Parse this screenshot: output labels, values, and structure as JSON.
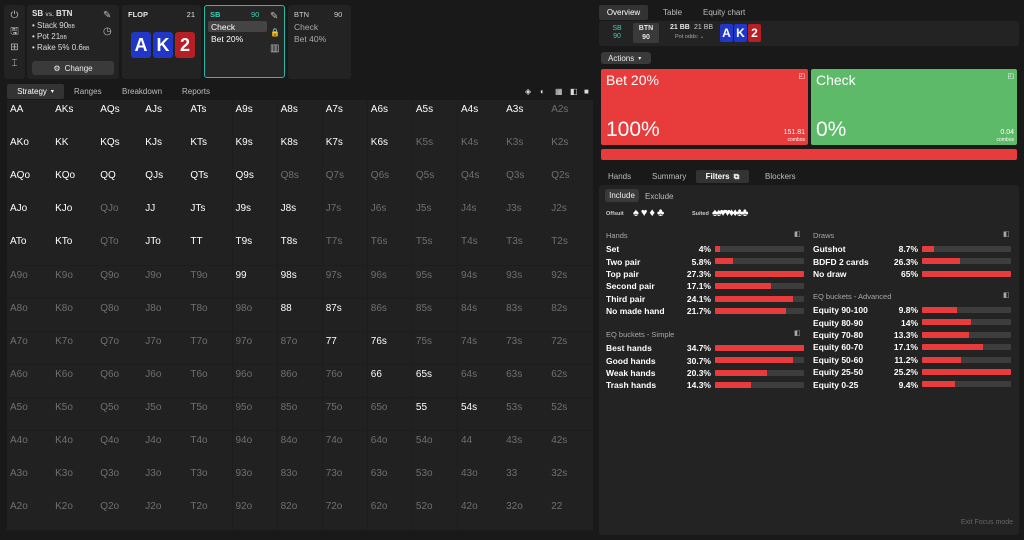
{
  "sidebar_icons": [
    "power-icon",
    "save-icon",
    "gamepad-icon",
    "text-cursor-icon"
  ],
  "config": {
    "title_left": "SB",
    "title_vs": "vs.",
    "title_right": "BTN",
    "stack": "• Stack 90",
    "stack_unit": "BB",
    "pot": "• Pot 21",
    "pot_unit": "BB",
    "rake": "• Rake 5% 0.6",
    "rake_unit": "BB",
    "change": "Change"
  },
  "flop": {
    "label": "FLOP",
    "num": "21",
    "cards": [
      {
        "rank": "A",
        "color": "#2137c7"
      },
      {
        "rank": "K",
        "color": "#2137c7"
      },
      {
        "rank": "2",
        "color": "#b61f24"
      }
    ]
  },
  "sb_box": {
    "label": "SB",
    "num": "90",
    "actions": [
      "Check",
      "Bet 20%"
    ]
  },
  "btn_box": {
    "label": "BTN",
    "num": "90",
    "actions": [
      "Check",
      "Bet 40%"
    ]
  },
  "left_tabs": [
    "Strategy",
    "Ranges",
    "Breakdown",
    "Reports"
  ],
  "grid": [
    [
      [
        "AA",
        1
      ],
      [
        "AKs",
        1
      ],
      [
        "AQs",
        1
      ],
      [
        "AJs",
        1
      ],
      [
        "ATs",
        1
      ],
      [
        "A9s",
        0.28
      ],
      [
        "A8s",
        0.44
      ],
      [
        "A7s",
        0.6
      ],
      [
        "A6s",
        0.36
      ],
      [
        "A5s",
        1
      ],
      [
        "A4s",
        0.6
      ],
      [
        "A3s",
        0.68
      ],
      [
        "A2s",
        0
      ]
    ],
    [
      [
        "AKo",
        1
      ],
      [
        "KK",
        1
      ],
      [
        "KQs",
        1
      ],
      [
        "KJs",
        1
      ],
      [
        "KTs",
        1
      ],
      [
        "K9s",
        0.84
      ],
      [
        "K8s",
        0.28
      ],
      [
        "K7s",
        0.24
      ],
      [
        "K6s",
        0.12
      ],
      [
        "K5s",
        0
      ],
      [
        "K4s",
        0
      ],
      [
        "K3s",
        0
      ],
      [
        "K2s",
        0
      ]
    ],
    [
      [
        "AQo",
        1
      ],
      [
        "KQo",
        1
      ],
      [
        "QQ",
        1
      ],
      [
        "QJs",
        1
      ],
      [
        "QTs",
        1
      ],
      [
        "Q9s",
        0.68
      ],
      [
        "Q8s",
        0
      ],
      [
        "Q7s",
        0
      ],
      [
        "Q6s",
        0
      ],
      [
        "Q5s",
        0
      ],
      [
        "Q4s",
        0
      ],
      [
        "Q3s",
        0
      ],
      [
        "Q2s",
        0
      ]
    ],
    [
      [
        "AJo",
        1
      ],
      [
        "KJo",
        0.48
      ],
      [
        "QJo",
        0
      ],
      [
        "JJ",
        1
      ],
      [
        "JTs",
        1
      ],
      [
        "J9s",
        1
      ],
      [
        "J8s",
        0.2
      ],
      [
        "J7s",
        0
      ],
      [
        "J6s",
        0
      ],
      [
        "J5s",
        0
      ],
      [
        "J4s",
        0
      ],
      [
        "J3s",
        0
      ],
      [
        "J2s",
        0
      ]
    ],
    [
      [
        "ATo",
        0.28
      ],
      [
        "KTo",
        0.12
      ],
      [
        "QTo",
        0
      ],
      [
        "JTo",
        0.08
      ],
      [
        "TT",
        1
      ],
      [
        "T9s",
        1
      ],
      [
        "T8s",
        1
      ],
      [
        "T7s",
        0
      ],
      [
        "T6s",
        0
      ],
      [
        "T5s",
        0
      ],
      [
        "T4s",
        0
      ],
      [
        "T3s",
        0
      ],
      [
        "T2s",
        0
      ]
    ],
    [
      [
        "A9o",
        0
      ],
      [
        "K9o",
        0
      ],
      [
        "Q9o",
        0
      ],
      [
        "J9o",
        0
      ],
      [
        "T9o",
        0
      ],
      [
        "99",
        1
      ],
      [
        "98s",
        1
      ],
      [
        "97s",
        0
      ],
      [
        "96s",
        0
      ],
      [
        "95s",
        0
      ],
      [
        "94s",
        0
      ],
      [
        "93s",
        0
      ],
      [
        "92s",
        0
      ]
    ],
    [
      [
        "A8o",
        0
      ],
      [
        "K8o",
        0
      ],
      [
        "Q8o",
        0
      ],
      [
        "J8o",
        0
      ],
      [
        "T8o",
        0
      ],
      [
        "98o",
        0
      ],
      [
        "88",
        1
      ],
      [
        "87s",
        0.72
      ],
      [
        "86s",
        0
      ],
      [
        "85s",
        0
      ],
      [
        "84s",
        0
      ],
      [
        "83s",
        0
      ],
      [
        "82s",
        0
      ]
    ],
    [
      [
        "A7o",
        0
      ],
      [
        "K7o",
        0
      ],
      [
        "Q7o",
        0
      ],
      [
        "J7o",
        0
      ],
      [
        "T7o",
        0
      ],
      [
        "97o",
        0
      ],
      [
        "87o",
        0
      ],
      [
        "77",
        1
      ],
      [
        "76s",
        0.52
      ],
      [
        "75s",
        0
      ],
      [
        "74s",
        0
      ],
      [
        "73s",
        0
      ],
      [
        "72s",
        0
      ]
    ],
    [
      [
        "A6o",
        0
      ],
      [
        "K6o",
        0
      ],
      [
        "Q6o",
        0
      ],
      [
        "J6o",
        0
      ],
      [
        "T6o",
        0
      ],
      [
        "96o",
        0
      ],
      [
        "86o",
        0
      ],
      [
        "76o",
        0
      ],
      [
        "66",
        1
      ],
      [
        "65s",
        0.14
      ],
      [
        "64s",
        0
      ],
      [
        "63s",
        0
      ],
      [
        "62s",
        0
      ]
    ],
    [
      [
        "A5o",
        0
      ],
      [
        "K5o",
        0
      ],
      [
        "Q5o",
        0
      ],
      [
        "J5o",
        0
      ],
      [
        "T5o",
        0
      ],
      [
        "95o",
        0
      ],
      [
        "85o",
        0
      ],
      [
        "75o",
        0
      ],
      [
        "65o",
        0
      ],
      [
        "55",
        0.2
      ],
      [
        "54s",
        0.18
      ],
      [
        "53s",
        0
      ],
      [
        "52s",
        0
      ]
    ],
    [
      [
        "A4o",
        0
      ],
      [
        "K4o",
        0
      ],
      [
        "Q4o",
        0
      ],
      [
        "J4o",
        0
      ],
      [
        "T4o",
        0
      ],
      [
        "94o",
        0
      ],
      [
        "84o",
        0
      ],
      [
        "74o",
        0
      ],
      [
        "64o",
        0
      ],
      [
        "54o",
        0
      ],
      [
        "44",
        0
      ],
      [
        "43s",
        0
      ],
      [
        "42s",
        0
      ]
    ],
    [
      [
        "A3o",
        0
      ],
      [
        "K3o",
        0
      ],
      [
        "Q3o",
        0
      ],
      [
        "J3o",
        0
      ],
      [
        "T3o",
        0
      ],
      [
        "93o",
        0
      ],
      [
        "83o",
        0
      ],
      [
        "73o",
        0
      ],
      [
        "63o",
        0
      ],
      [
        "53o",
        0
      ],
      [
        "43o",
        0
      ],
      [
        "33",
        0
      ],
      [
        "32s",
        0
      ]
    ],
    [
      [
        "A2o",
        0
      ],
      [
        "K2o",
        0
      ],
      [
        "Q2o",
        0
      ],
      [
        "J2o",
        0
      ],
      [
        "T2o",
        0
      ],
      [
        "92o",
        0
      ],
      [
        "82o",
        0
      ],
      [
        "72o",
        0
      ],
      [
        "62o",
        0
      ],
      [
        "52o",
        0
      ],
      [
        "42o",
        0
      ],
      [
        "32o",
        0
      ],
      [
        "22",
        0
      ]
    ]
  ],
  "right_tabs": [
    "Overview",
    "Table",
    "Equity chart"
  ],
  "overview": {
    "sb": "SB",
    "sb_num": "90",
    "btn": "BTN",
    "btn_num": "90",
    "bb1": "21 BB",
    "bb2": "21 BB",
    "pot_odds": "Pot odds:",
    "board": [
      "A",
      "K",
      "2"
    ]
  },
  "actions_label": "Actions",
  "action_cards": [
    {
      "name": "Bet 20%",
      "pct": "100%",
      "combos": "151.81",
      "combos_label": "combos",
      "color": "#e83b3b"
    },
    {
      "name": "Check",
      "pct": "0%",
      "combos": "0.04",
      "combos_label": "combos",
      "color": "#5cba68"
    }
  ],
  "bottom_tabs": [
    "Hands",
    "Summary",
    "Filters",
    "Blockers"
  ],
  "include": "Include",
  "exclude": "Exclude",
  "offsuit": "Offsuit",
  "suited": "Suited",
  "suits": [
    "♠",
    "♥",
    "♦",
    "♣"
  ],
  "hands_title": "Hands",
  "hands": [
    [
      "Set",
      "4%",
      0.06
    ],
    [
      "Two pair",
      "5.8%",
      0.2
    ],
    [
      "Top pair",
      "27.3%",
      1
    ],
    [
      "Second pair",
      "17.1%",
      0.63
    ],
    [
      "Third pair",
      "24.1%",
      0.88
    ],
    [
      "No made hand",
      "21.7%",
      0.8
    ]
  ],
  "eq_simple_title": "EQ buckets - Simple",
  "eq_simple": [
    [
      "Best hands",
      "34.7%",
      1
    ],
    [
      "Good hands",
      "30.7%",
      0.88
    ],
    [
      "Weak hands",
      "20.3%",
      0.58
    ],
    [
      "Trash hands",
      "14.3%",
      0.41
    ]
  ],
  "draws_title": "Draws",
  "draws": [
    [
      "Gutshot",
      "8.7%",
      0.14
    ],
    [
      "BDFD 2 cards",
      "26.3%",
      0.43
    ],
    [
      "No draw",
      "65%",
      1
    ]
  ],
  "eq_adv_title": "EQ buckets - Advanced",
  "eq_adv": [
    [
      "Equity 90-100",
      "9.8%",
      0.39
    ],
    [
      "Equity 80-90",
      "14%",
      0.55
    ],
    [
      "Equity 70-80",
      "13.3%",
      0.53
    ],
    [
      "Equity 60-70",
      "17.1%",
      0.68
    ],
    [
      "Equity 50-60",
      "11.2%",
      0.44
    ],
    [
      "Equity 25-50",
      "25.2%",
      1
    ],
    [
      "Equity 0-25",
      "9.4%",
      0.37
    ]
  ],
  "exit_focus": "Exit Focus mode"
}
